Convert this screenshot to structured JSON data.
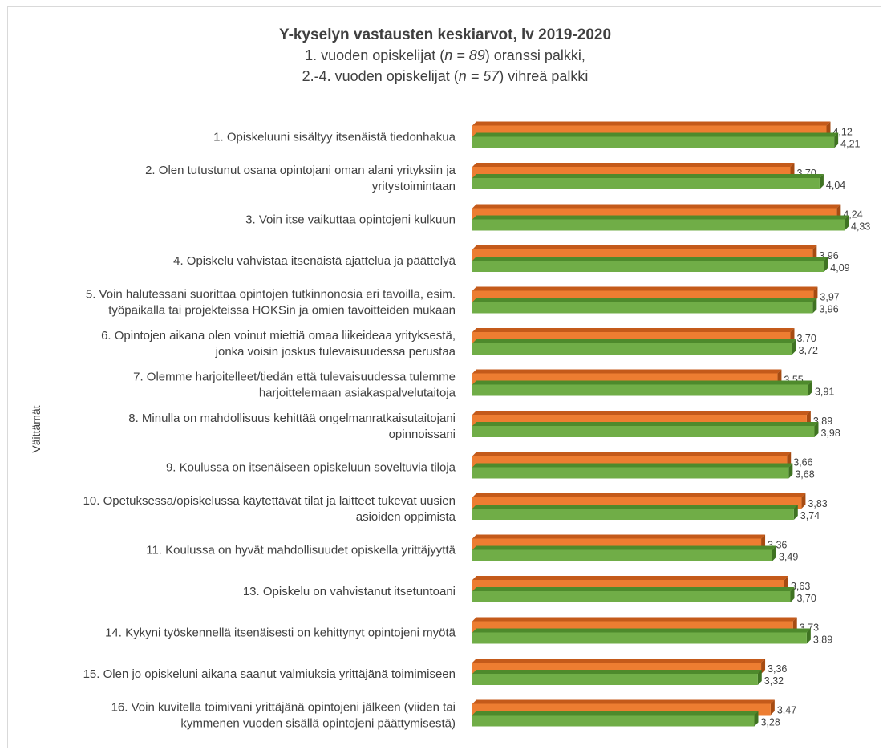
{
  "chart_data": {
    "type": "bar",
    "orientation": "horizontal",
    "style": "3d-clustered",
    "title": "Y-kyselyn vastausten keskiarvot, lv 2019-2020",
    "subtitle_line1": {
      "before": "1. vuoden opiskelijat (",
      "italic": "n = 89",
      "after": ") oranssi palkki,"
    },
    "subtitle_line2": {
      "before": "2.-4. vuoden opiskelijat (",
      "italic": "n = 57",
      "after": ") vihreä palkki"
    },
    "ylabel": "Väittämät",
    "xlabel": "",
    "xlim": [
      0,
      5
    ],
    "grid": false,
    "legend": "none",
    "categories": [
      [
        "1. Opiskeluuni sisältyy itsenäistä tiedonhakua"
      ],
      [
        "2. Olen tutustunut osana opintojani oman alani yrityksiin ja",
        "yritystoimintaan"
      ],
      [
        "3. Voin itse vaikuttaa opintojeni kulkuun"
      ],
      [
        "4. Opiskelu vahvistaa itsenäistä ajattelua ja päättelyä"
      ],
      [
        "5. Voin halutessani suorittaa opintojen tutkinnonosia eri tavoilla, esim.",
        "työpaikalla tai projekteissa HOKSin ja omien tavoitteiden mukaan"
      ],
      [
        "6. Opintojen aikana olen voinut miettiä omaa liikeideaa yrityksestä,",
        "jonka voisin joskus tulevaisuudessa perustaa"
      ],
      [
        "7. Olemme harjoitelleet/tiedän että tulevaisuudessa tulemme",
        "harjoittelemaan asiakaspalvelutaitoja"
      ],
      [
        "8. Minulla on mahdollisuus kehittää ongelmanratkaisutaitojani",
        "opinnoissani"
      ],
      [
        "9. Koulussa on itsenäiseen opiskeluun soveltuvia tiloja"
      ],
      [
        "10. Opetuksessa/opiskelussa käytettävät tilat ja laitteet tukevat uusien",
        "asioiden oppimista"
      ],
      [
        "11. Koulussa on hyvät mahdollisuudet opiskella yrittäjyyttä"
      ],
      [
        "13. Opiskelu on vahvistanut itsetuntoani"
      ],
      [
        "14. Kykyni työskennellä itsenäisesti on kehittynyt opintojeni myötä"
      ],
      [
        "15. Olen jo opiskeluni aikana saanut valmiuksia yrittäjänä toimimiseen"
      ],
      [
        "16. Voin kuvitella toimivani yrittäjänä opintojeni jälkeen (viiden tai",
        "kymmenen vuoden sisällä opintojeni päättymisestä)"
      ]
    ],
    "series": [
      {
        "values": [
          4.12,
          3.7,
          4.24,
          3.96,
          3.97,
          3.7,
          3.55,
          3.89,
          3.66,
          3.83,
          3.36,
          3.63,
          3.73,
          3.36,
          3.47
        ],
        "labels": [
          "4,12",
          "3,70",
          "4,24",
          "3,96",
          "3,97",
          "3,70",
          "3,55",
          "3,89",
          "3,66",
          "3,83",
          "3,36",
          "3,63",
          "3,73",
          "3,36",
          "3,47"
        ],
        "color": "#ed7d31",
        "top_color": "#c45a1a",
        "side_color": "#a64b12"
      },
      {
        "values": [
          4.21,
          4.04,
          4.33,
          4.09,
          3.96,
          3.72,
          3.91,
          3.98,
          3.68,
          3.74,
          3.49,
          3.7,
          3.89,
          3.32,
          3.28
        ],
        "labels": [
          "4,21",
          "4,04",
          "4,33",
          "4,09",
          "3,96",
          "3,72",
          "3,91",
          "3,98",
          "3,68",
          "3,74",
          "3,49",
          "3,70",
          "3,89",
          "3,32",
          "3,28"
        ],
        "color": "#70ad47",
        "top_color": "#4e8a2c",
        "side_color": "#3f7322"
      }
    ]
  }
}
